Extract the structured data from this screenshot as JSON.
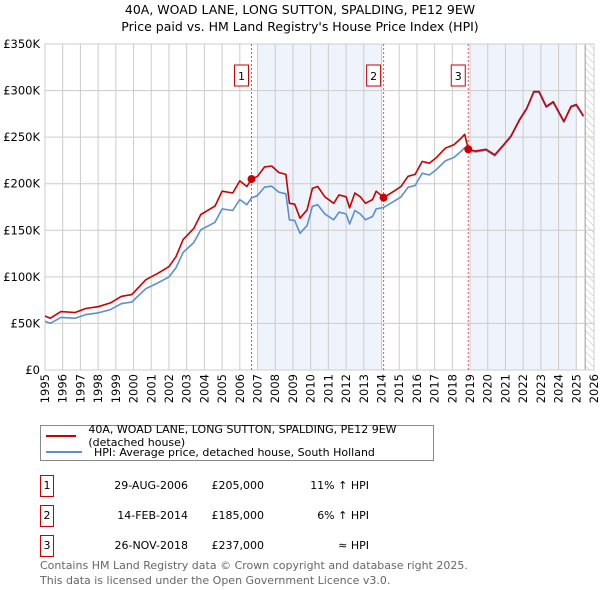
{
  "title": "40A, WOAD LANE, LONG SUTTON, SPALDING, PE12 9EW",
  "subtitle": "Price paid vs. HM Land Registry's House Price Index (HPI)",
  "colors": {
    "property": "#cc0000",
    "hpi": "#5b8fd0",
    "shade": "#eef3fc",
    "grid": "#cccccc",
    "marker_border": "#cc0000"
  },
  "chart_data": {
    "type": "line",
    "title": "Price paid vs. HM Land Registry's House Price Index (HPI)",
    "xlim": [
      1995,
      2026
    ],
    "ylim": [
      0,
      350000
    ],
    "x_ticks": [
      "1995",
      "1996",
      "1997",
      "1998",
      "1999",
      "2000",
      "2001",
      "2002",
      "2003",
      "2004",
      "2005",
      "2006",
      "2007",
      "2008",
      "2009",
      "2010",
      "2011",
      "2012",
      "2013",
      "2014",
      "2015",
      "2016",
      "2017",
      "2018",
      "2019",
      "2020",
      "2021",
      "2022",
      "2023",
      "2024",
      "2025",
      "2026"
    ],
    "y_ticks": [
      {
        "value": 0,
        "label": "£0"
      },
      {
        "value": 50000,
        "label": "£50K"
      },
      {
        "value": 100000,
        "label": "£100K"
      },
      {
        "value": 150000,
        "label": "£150K"
      },
      {
        "value": 200000,
        "label": "£200K"
      },
      {
        "value": 250000,
        "label": "£250K"
      },
      {
        "value": 300000,
        "label": "£300K"
      },
      {
        "value": 350000,
        "label": "£350K"
      }
    ],
    "grid": true,
    "shaded_ranges": [
      [
        2007,
        2014
      ],
      [
        2019,
        2025
      ]
    ],
    "hatched_range": [
      2025.5,
      2026
    ],
    "series": [
      {
        "name": "40A, WOAD LANE, LONG SUTTON, SPALDING, PE12 9EW (detached house)",
        "x": [
          1995.0,
          1995.3,
          1995.9,
          1996.7,
          1997.3,
          1998.0,
          1998.7,
          1999.3,
          1999.9,
          2000.7,
          2001.4,
          2002.0,
          2002.4,
          2002.8,
          2003.4,
          2003.8,
          2004.6,
          2005.0,
          2005.6,
          2006.0,
          2006.4,
          2006.66,
          2007.0,
          2007.4,
          2007.8,
          2008.2,
          2008.6,
          2008.8,
          2009.1,
          2009.4,
          2009.8,
          2010.1,
          2010.4,
          2010.8,
          2011.3,
          2011.6,
          2012.0,
          2012.2,
          2012.5,
          2012.8,
          2013.1,
          2013.5,
          2013.7,
          2014.12,
          2014.7,
          2015.1,
          2015.5,
          2015.9,
          2016.3,
          2016.7,
          2017.1,
          2017.6,
          2018.1,
          2018.5,
          2018.7,
          2018.9,
          2019.3,
          2019.9,
          2020.4,
          2020.9,
          2021.3,
          2021.8,
          2022.2,
          2022.6,
          2022.9,
          2023.3,
          2023.7,
          2023.9,
          2024.3,
          2024.7,
          2025.0,
          2025.4
        ],
        "values": [
          58000,
          55600,
          62700,
          61700,
          66000,
          68000,
          72000,
          79000,
          81000,
          97000,
          104000,
          111000,
          122000,
          140000,
          152000,
          167000,
          176000,
          192000,
          190000,
          203000,
          197000,
          205000,
          208000,
          218000,
          219000,
          212000,
          210000,
          179000,
          178000,
          163000,
          172000,
          195000,
          197000,
          186000,
          179000,
          188000,
          186000,
          174000,
          190000,
          186000,
          179000,
          183000,
          192000,
          185000,
          192000,
          197000,
          208000,
          210000,
          224000,
          222000,
          228000,
          238000,
          242000,
          249000,
          253000,
          237000,
          235000,
          237000,
          231000,
          242000,
          251000,
          269000,
          281000,
          299000,
          299000,
          283000,
          288000,
          281000,
          267000,
          283000,
          285000,
          273000
        ]
      },
      {
        "name": "HPI: Average price, detached house, South Holland",
        "x": [
          1995.0,
          1995.3,
          1995.9,
          1996.7,
          1997.3,
          1998.0,
          1998.7,
          1999.3,
          1999.9,
          2000.7,
          2001.4,
          2002.0,
          2002.4,
          2002.8,
          2003.4,
          2003.8,
          2004.6,
          2005.0,
          2005.6,
          2006.0,
          2006.4,
          2006.66,
          2007.0,
          2007.4,
          2007.8,
          2008.2,
          2008.6,
          2008.8,
          2009.1,
          2009.4,
          2009.8,
          2010.1,
          2010.4,
          2010.8,
          2011.3,
          2011.6,
          2012.0,
          2012.2,
          2012.5,
          2012.8,
          2013.1,
          2013.5,
          2013.7,
          2014.12,
          2014.7,
          2015.1,
          2015.5,
          2015.9,
          2016.3,
          2016.7,
          2017.1,
          2017.6,
          2018.1,
          2018.5,
          2018.7,
          2018.9,
          2019.3,
          2019.9,
          2020.4,
          2020.9,
          2021.3,
          2021.8,
          2022.2,
          2022.6,
          2022.9,
          2023.3,
          2023.7,
          2023.9,
          2024.3,
          2024.7,
          2025.0,
          2025.4
        ],
        "values": [
          52300,
          50100,
          56500,
          55600,
          59500,
          61300,
          64900,
          71200,
          73000,
          87400,
          93700,
          100000,
          109900,
          126100,
          136900,
          150500,
          158600,
          173000,
          171200,
          182900,
          177500,
          184700,
          187400,
          196400,
          197300,
          191000,
          189200,
          161300,
          160400,
          146800,
          155000,
          175700,
          177500,
          167600,
          161300,
          169400,
          167600,
          156800,
          171200,
          167600,
          161300,
          164900,
          173000,
          174500,
          181100,
          185800,
          196200,
          198100,
          211300,
          209400,
          215100,
          224500,
          228300,
          234900,
          238700,
          237000,
          234000,
          236000,
          230000,
          241000,
          250000,
          268000,
          280000,
          298000,
          298000,
          282000,
          287000,
          280000,
          266000,
          282000,
          284000,
          272000
        ]
      }
    ],
    "sales": [
      {
        "label": "1",
        "x": 2006.66,
        "value": 205000
      },
      {
        "label": "2",
        "x": 2014.12,
        "value": 185000
      },
      {
        "label": "3",
        "x": 2018.9,
        "value": 237000
      }
    ]
  },
  "legend": {
    "property": "40A, WOAD LANE, LONG SUTTON, SPALDING, PE12 9EW (detached house)",
    "hpi": "HPI: Average price, detached house, South Holland"
  },
  "transactions": [
    {
      "num": "1",
      "date": "29-AUG-2006",
      "price": "£205,000",
      "hpi": "11% ↑ HPI"
    },
    {
      "num": "2",
      "date": "14-FEB-2014",
      "price": "£185,000",
      "hpi": "6% ↑ HPI"
    },
    {
      "num": "3",
      "date": "26-NOV-2018",
      "price": "£237,000",
      "hpi": "≈ HPI"
    }
  ],
  "footer": {
    "line1": "Contains HM Land Registry data © Crown copyright and database right 2025.",
    "line2": "This data is licensed under the Open Government Licence v3.0."
  }
}
